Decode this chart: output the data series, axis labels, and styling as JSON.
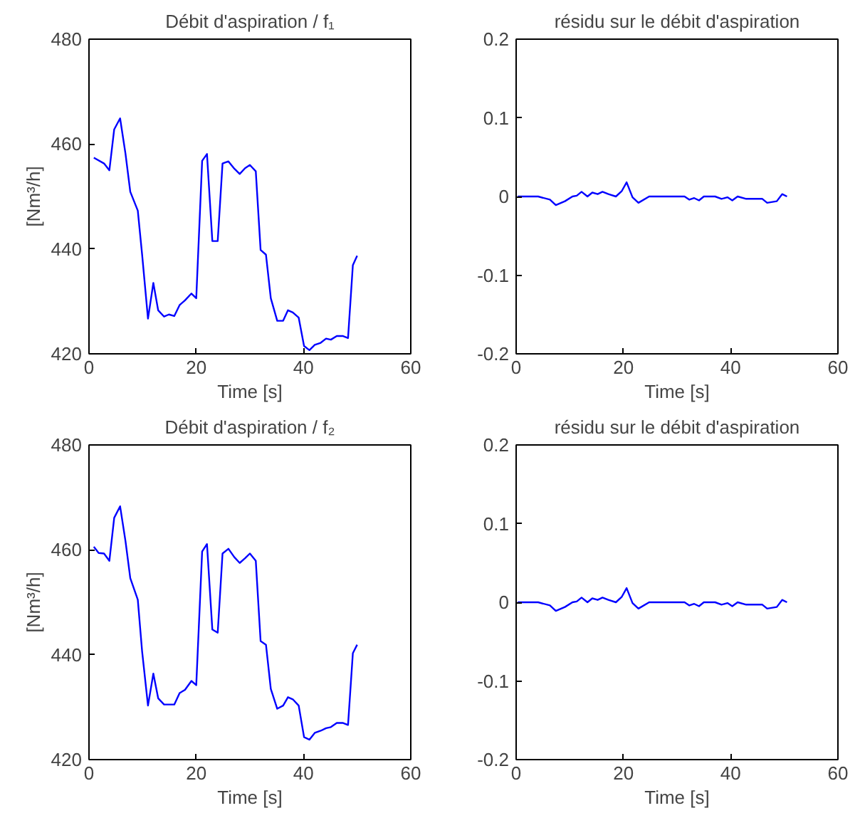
{
  "chart_data": [
    {
      "type": "line",
      "title": "Débit d'aspiration / f₁",
      "xlabel": "Time [s]",
      "ylabel": "[Nm³/h]",
      "xlim": [
        0,
        60
      ],
      "ylim": [
        420,
        480
      ],
      "xticks": [
        0,
        20,
        40,
        60
      ],
      "yticks": [
        420,
        440,
        460,
        480
      ],
      "x": [
        0.9,
        2.8,
        3.8,
        4.7,
        5.8,
        6.8,
        7.7,
        9.1,
        9.9,
        11,
        12,
        12.9,
        14,
        14.9,
        15.9,
        16.9,
        17.9,
        19.1,
        20,
        21.1,
        22,
        23,
        24,
        24.9,
        26,
        27.1,
        28.1,
        29.1,
        30,
        31.1,
        32,
        33,
        33.9,
        35.1,
        36.2,
        37.1,
        38,
        39.1,
        40.1,
        41.1,
        42.1,
        43.2,
        44.2,
        45.1,
        46.2,
        47.3,
        48.3,
        49.2,
        50
      ],
      "series": [
        {
          "color": "#0000ff",
          "values": [
            457.4,
            456.3,
            455,
            462.8,
            464.9,
            458.2,
            450.9,
            447.3,
            439,
            426.7,
            433.5,
            428.3,
            427.1,
            427.5,
            427.2,
            429.3,
            430.2,
            431.5,
            430.6,
            456.8,
            458.1,
            441.5,
            441.5,
            456.3,
            456.7,
            455.3,
            454.3,
            455.4,
            456,
            454.8,
            439.8,
            438.9,
            430.6,
            426.3,
            426.3,
            428.3,
            427.9,
            426.9,
            421.5,
            420.7,
            421.7,
            422.1,
            422.9,
            422.7,
            423.4,
            423.4,
            423,
            436.9,
            438.7
          ]
        }
      ]
    },
    {
      "type": "line",
      "title": "résidu sur le débit d'aspiration",
      "xlabel": "Time [s]",
      "xlim": [
        0,
        60
      ],
      "ylim": [
        -0.2,
        0.2
      ],
      "xticks": [
        0,
        20,
        40,
        60
      ],
      "yticks": [
        -0.2,
        -0.1,
        0,
        0.1,
        0.2
      ],
      "x": [
        0.3,
        4.1,
        6.3,
        7.4,
        9.1,
        10.5,
        11.3,
        12.2,
        13.3,
        14.2,
        15.2,
        16.1,
        17.2,
        18.6,
        19.7,
        20.6,
        21.7,
        22.8,
        24.8,
        31.4,
        32.3,
        33.2,
        34.1,
        35,
        37.1,
        38.3,
        39.4,
        40.3,
        41.3,
        42.9,
        45.9,
        46.8,
        48.6,
        49.6,
        50.5
      ],
      "series": [
        {
          "color": "#0000ff",
          "values": [
            0,
            0,
            -0.004,
            -0.011,
            -0.006,
            0,
            0.001,
            0.006,
            0,
            0.005,
            0.003,
            0.006,
            0.003,
            0,
            0.007,
            0.018,
            -0.001,
            -0.008,
            0,
            0,
            -0.004,
            -0.002,
            -0.005,
            0,
            0,
            -0.003,
            -0.001,
            -0.005,
            0,
            -0.003,
            -0.003,
            -0.008,
            -0.006,
            0.003,
            0
          ]
        }
      ]
    },
    {
      "type": "line",
      "title": "Débit d'aspiration / f₂",
      "xlabel": "Time [s]",
      "ylabel": "[Nm³/h]",
      "xlim": [
        0,
        60
      ],
      "ylim": [
        420,
        480
      ],
      "xticks": [
        0,
        20,
        40,
        60
      ],
      "yticks": [
        420,
        440,
        460,
        480
      ],
      "x": [
        0.9,
        1.8,
        2.8,
        3.8,
        4.7,
        5.8,
        6.8,
        7.7,
        9.1,
        9.9,
        11,
        12,
        12.9,
        14,
        14.9,
        15.9,
        16.9,
        17.9,
        19.1,
        20,
        21.1,
        22,
        23,
        24,
        24.9,
        26,
        27.1,
        28.1,
        29.1,
        30,
        31.1,
        32,
        33,
        33.9,
        35.1,
        36.2,
        37.1,
        38,
        39.1,
        40.1,
        41.1,
        42.1,
        43.2,
        44.2,
        45.1,
        46.2,
        47.3,
        48.3,
        49.2,
        50
      ],
      "series": [
        {
          "color": "#0000ff",
          "values": [
            460.6,
            459.4,
            459.3,
            457.9,
            466.1,
            468.3,
            461.7,
            454.6,
            450.5,
            440.7,
            430.3,
            436.4,
            431.7,
            430.5,
            430.5,
            430.5,
            432.7,
            433.3,
            435,
            434.2,
            459.7,
            461.1,
            444.8,
            444.2,
            459.3,
            460.2,
            458.6,
            457.5,
            458.4,
            459.3,
            457.9,
            442.6,
            441.9,
            433.5,
            429.7,
            430.3,
            431.9,
            431.5,
            430.3,
            424.3,
            423.8,
            425.1,
            425.5,
            426,
            426.2,
            427,
            427,
            426.6,
            440.3,
            441.9
          ]
        }
      ]
    },
    {
      "type": "line",
      "title": "résidu sur le débit d'aspiration",
      "xlabel": "Time [s]",
      "xlim": [
        0,
        60
      ],
      "ylim": [
        -0.2,
        0.2
      ],
      "xticks": [
        0,
        20,
        40,
        60
      ],
      "yticks": [
        -0.2,
        -0.1,
        0,
        0.1,
        0.2
      ],
      "x": [
        0.3,
        4.1,
        6.3,
        7.4,
        9.1,
        10.5,
        11.3,
        12.2,
        13.3,
        14.2,
        15.2,
        16.1,
        17.2,
        18.6,
        19.7,
        20.6,
        21.7,
        22.8,
        24.8,
        31.4,
        32.3,
        33.2,
        34.1,
        35,
        37.1,
        38.3,
        39.4,
        40.3,
        41.3,
        42.9,
        45.9,
        46.8,
        48.6,
        49.6,
        50.5
      ],
      "series": [
        {
          "color": "#0000ff",
          "values": [
            0,
            0,
            -0.004,
            -0.011,
            -0.006,
            0,
            0.001,
            0.006,
            0,
            0.005,
            0.003,
            0.006,
            0.003,
            0,
            0.007,
            0.018,
            -0.001,
            -0.008,
            0,
            0,
            -0.004,
            -0.002,
            -0.005,
            0,
            0,
            -0.003,
            -0.001,
            -0.005,
            0,
            -0.003,
            -0.003,
            -0.008,
            -0.006,
            0.003,
            0
          ]
        }
      ]
    }
  ]
}
